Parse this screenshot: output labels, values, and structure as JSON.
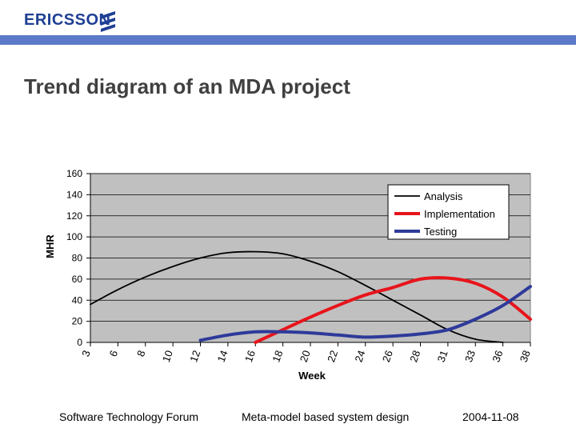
{
  "header": {
    "logo_text": "ERICSSON",
    "logo_icon": "ericsson-stripes-icon",
    "accent_color": "#5b7bc8",
    "logo_color": "#1f3f94"
  },
  "title": "Trend diagram of an MDA project",
  "chart_data": {
    "type": "line",
    "title": "",
    "xlabel": "Week",
    "ylabel": "MHR",
    "categories": [
      "3",
      "6",
      "8",
      "10",
      "12",
      "14",
      "16",
      "18",
      "20",
      "22",
      "24",
      "26",
      "28",
      "31",
      "33",
      "36",
      "38"
    ],
    "ylim": [
      0,
      160
    ],
    "yticks": [
      0,
      20,
      40,
      60,
      80,
      100,
      120,
      140,
      160
    ],
    "grid": true,
    "plot_background": "#c0c0c0",
    "legend_position": "top-right",
    "series": [
      {
        "name": "Analysis",
        "color": "#000000",
        "values": [
          36,
          50,
          62,
          72,
          80,
          85,
          86,
          84,
          77,
          67,
          54,
          40,
          26,
          12,
          3,
          0,
          null
        ]
      },
      {
        "name": "Implementation",
        "color": "#e8141b",
        "values": [
          null,
          null,
          null,
          null,
          null,
          null,
          0,
          12,
          24,
          35,
          45,
          52,
          60,
          61,
          56,
          43,
          22
        ]
      },
      {
        "name": "Testing",
        "color": "#2e3a9a",
        "values": [
          null,
          null,
          null,
          null,
          2,
          7,
          10,
          10,
          9,
          7,
          5,
          6,
          8,
          12,
          22,
          35,
          53
        ]
      }
    ]
  },
  "footer": {
    "left": "Software Technology Forum",
    "center": "Meta-model based system design",
    "right": "2004-11-08"
  }
}
